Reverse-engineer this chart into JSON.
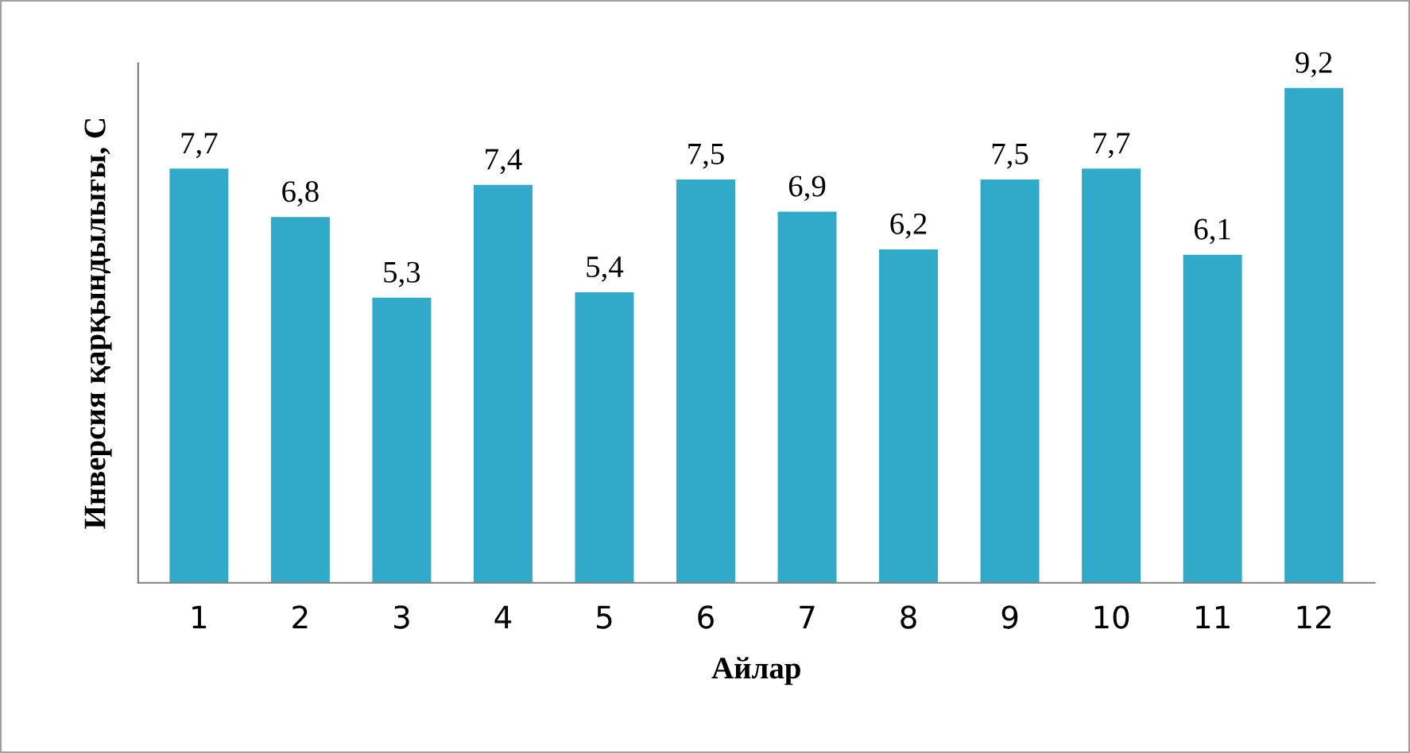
{
  "chart_data": {
    "type": "bar",
    "xlabel": "Айлар",
    "ylabel": "Инверсия қарқындылығы, С",
    "categories": [
      "1",
      "2",
      "3",
      "4",
      "5",
      "6",
      "7",
      "8",
      "9",
      "10",
      "11",
      "12"
    ],
    "values": [
      7.7,
      6.8,
      5.3,
      7.4,
      5.4,
      7.5,
      6.9,
      6.2,
      7.5,
      7.7,
      6.1,
      9.2
    ],
    "value_labels": [
      "7,7",
      "6,8",
      "5,3",
      "7,4",
      "5,4",
      "7,5",
      "6,9",
      "6,2",
      "7,5",
      "7,7",
      "6,1",
      "9,2"
    ],
    "color": "#31a9c9"
  }
}
